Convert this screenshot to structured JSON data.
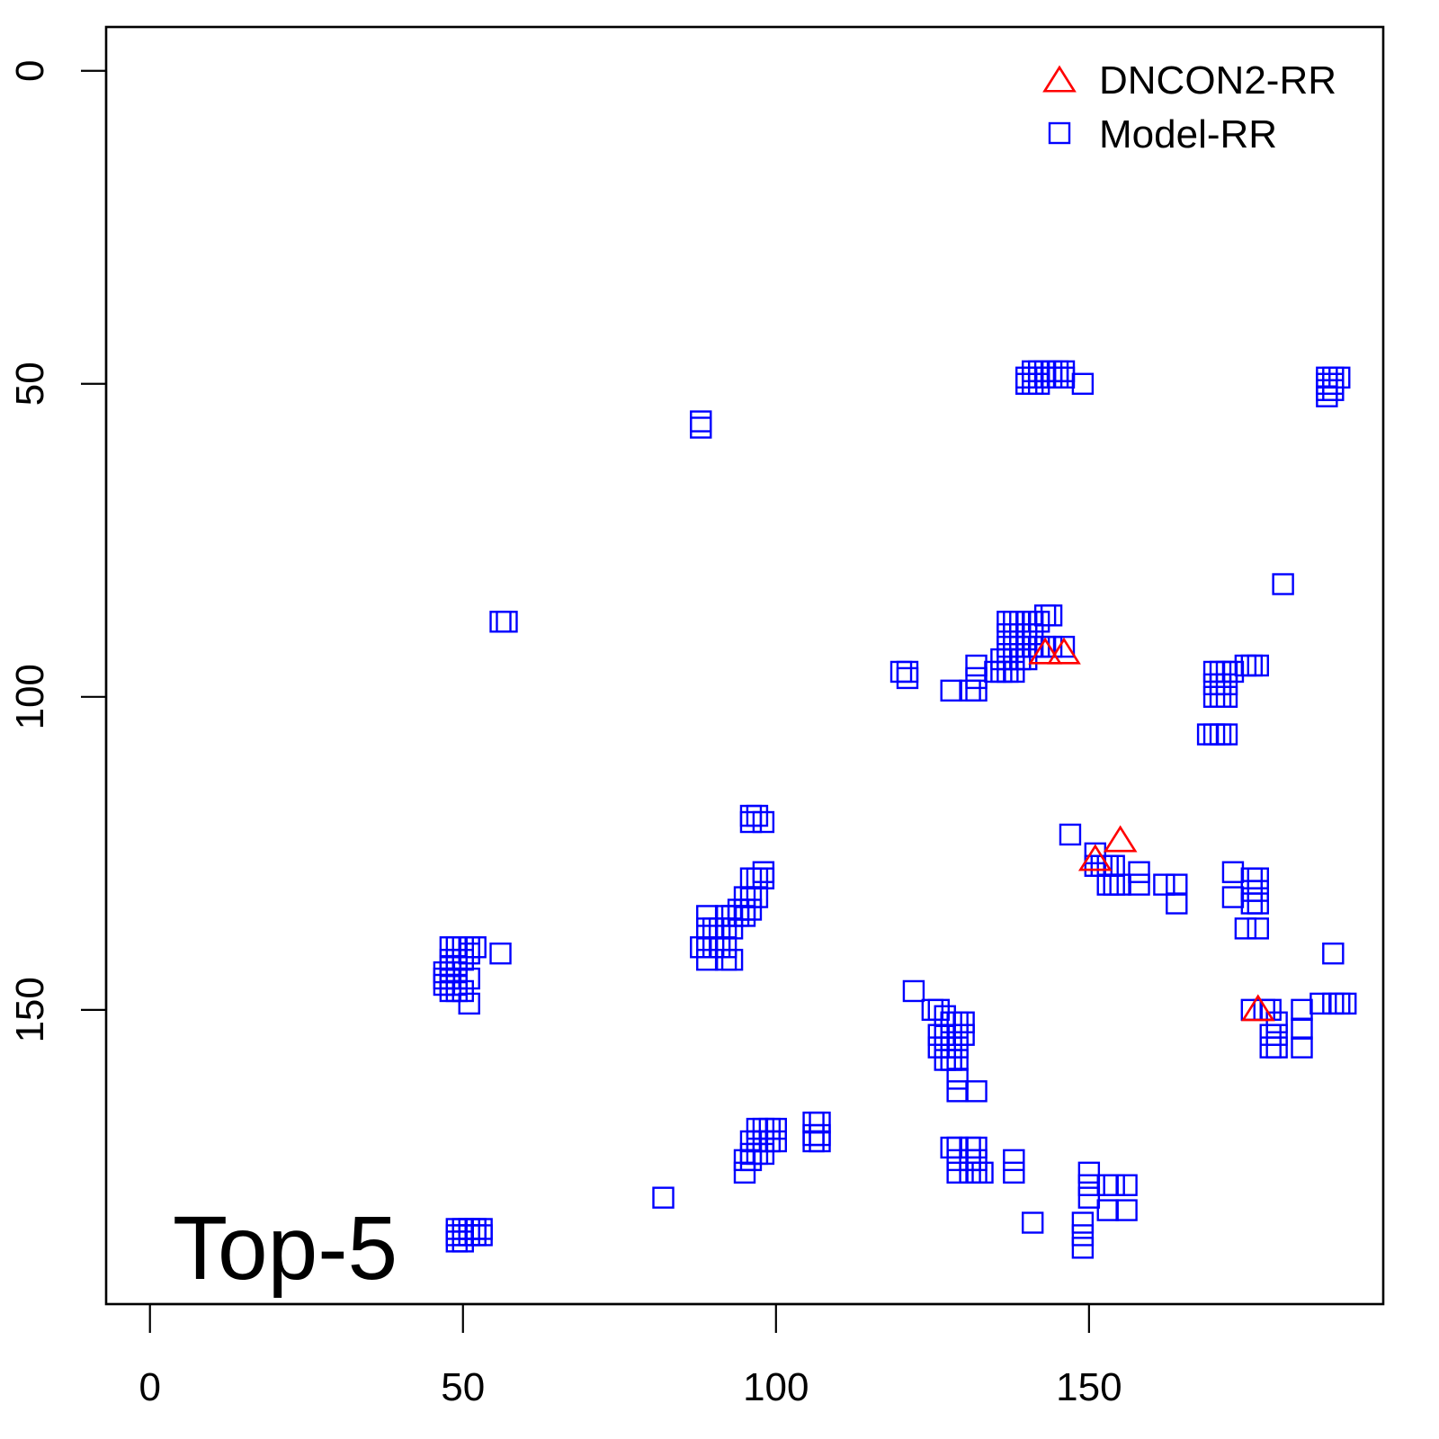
{
  "chart_data": {
    "type": "scatter",
    "title": "",
    "xlabel": "",
    "ylabel": "",
    "xlim": [
      -7,
      197
    ],
    "ylim": [
      -7,
      197
    ],
    "y_reversed": true,
    "grid": false,
    "legend_position": "top-right",
    "x_ticks": [
      0,
      50,
      100,
      150
    ],
    "x_tick_labels": [
      "0",
      "50",
      "100",
      "150"
    ],
    "y_ticks": [
      0,
      50,
      100,
      150
    ],
    "y_tick_labels": [
      "0",
      "50",
      "100",
      "150"
    ],
    "annotation": "Top-5",
    "series": [
      {
        "name": "DNCON2-RR",
        "marker": "triangle",
        "color": "#ff0000",
        "x": [
          143,
          146,
          151,
          155,
          177
        ],
        "y": [
          93,
          93,
          126,
          123,
          150
        ]
      },
      {
        "name": "Model-RR",
        "marker": "square",
        "color": "#0000ff",
        "x": [
          141,
          142,
          143,
          144,
          145,
          146,
          140,
          141,
          142,
          143,
          144,
          145,
          146,
          149,
          140,
          141,
          142,
          188,
          189,
          190,
          188,
          189,
          188,
          189,
          188,
          88,
          88,
          56,
          57,
          181,
          137,
          138,
          139,
          140,
          141,
          142,
          143,
          144,
          137,
          138,
          139,
          140,
          141,
          137,
          138,
          139,
          140,
          141,
          142,
          143,
          144,
          146,
          136,
          137,
          138,
          139,
          140,
          135,
          136,
          137,
          138,
          132,
          132,
          131,
          132,
          128,
          120,
          121,
          121,
          170,
          171,
          172,
          173,
          170,
          171,
          172,
          170,
          171,
          172,
          175,
          176,
          177,
          169,
          170,
          171,
          172,
          96,
          97,
          96,
          98,
          98,
          96,
          97,
          98,
          95,
          96,
          97,
          94,
          95,
          96,
          89,
          92,
          93,
          94,
          95,
          89,
          90,
          91,
          92,
          93,
          88,
          89,
          90,
          91,
          92,
          89,
          92,
          93,
          147,
          151,
          151,
          152,
          153,
          154,
          153,
          154,
          155,
          158,
          158,
          162,
          164,
          164,
          173,
          173,
          176,
          177,
          176,
          177,
          176,
          177,
          175,
          177,
          48,
          49,
          50,
          51,
          48,
          49,
          50,
          48,
          49,
          47,
          48,
          49,
          47,
          48,
          49,
          47,
          48,
          49,
          48,
          49,
          50,
          51,
          51,
          51,
          52,
          56,
          189,
          122,
          125,
          126,
          127,
          128,
          129,
          130,
          126,
          127,
          128,
          129,
          130,
          126,
          127,
          128,
          129,
          127,
          128,
          129,
          129,
          129,
          132,
          176,
          178,
          179,
          180,
          179,
          180,
          179,
          180,
          184,
          184,
          184,
          187,
          189,
          190,
          191,
          97,
          98,
          99,
          100,
          96,
          97,
          98,
          99,
          100,
          96,
          97,
          98,
          95,
          96,
          95,
          106,
          107,
          106,
          107,
          106,
          107,
          128,
          129,
          131,
          132,
          129,
          131,
          132,
          129,
          131,
          132,
          133,
          138,
          138,
          82,
          150,
          150,
          150,
          153,
          154,
          156,
          153,
          156,
          149,
          149,
          149,
          141,
          49,
          50,
          51,
          52,
          53,
          49,
          50,
          51,
          52,
          53,
          49,
          50
        ],
        "y": [
          48,
          48,
          48,
          48,
          48,
          48,
          49,
          49,
          49,
          49,
          49,
          49,
          49,
          50,
          50,
          50,
          50,
          49,
          49,
          49,
          50,
          50,
          51,
          51,
          52,
          56,
          57,
          88,
          88,
          82,
          88,
          88,
          88,
          88,
          88,
          88,
          87,
          87,
          90,
          90,
          90,
          90,
          90,
          92,
          92,
          92,
          92,
          92,
          92,
          92,
          92,
          92,
          94,
          94,
          94,
          94,
          94,
          96,
          96,
          96,
          96,
          95,
          97,
          99,
          99,
          99,
          96,
          96,
          97,
          96,
          96,
          96,
          96,
          98,
          98,
          98,
          100,
          100,
          100,
          95,
          95,
          95,
          106,
          106,
          106,
          106,
          119,
          119,
          120,
          120,
          128,
          129,
          129,
          129,
          132,
          132,
          132,
          134,
          134,
          134,
          135,
          135,
          135,
          135,
          135,
          137,
          137,
          137,
          137,
          137,
          140,
          140,
          140,
          140,
          140,
          142,
          142,
          142,
          122,
          125,
          127,
          127,
          127,
          127,
          130,
          130,
          130,
          128,
          130,
          130,
          130,
          133,
          128,
          132,
          129,
          129,
          131,
          131,
          133,
          133,
          137,
          137,
          140,
          140,
          140,
          140,
          142,
          142,
          142,
          143,
          143,
          144,
          144,
          144,
          145,
          145,
          145,
          146,
          146,
          146,
          147,
          147,
          147,
          141,
          145,
          149,
          140,
          141,
          141,
          147,
          150,
          150,
          151,
          152,
          152,
          152,
          154,
          154,
          154,
          154,
          154,
          156,
          156,
          156,
          156,
          158,
          158,
          158,
          161,
          163,
          163,
          150,
          150,
          150,
          152,
          154,
          154,
          156,
          156,
          153,
          156,
          150,
          149,
          149,
          149,
          149,
          169,
          169,
          169,
          169,
          171,
          171,
          171,
          171,
          171,
          173,
          173,
          173,
          174,
          174,
          176,
          168,
          168,
          170,
          170,
          171,
          171,
          172,
          172,
          172,
          172,
          174,
          174,
          174,
          176,
          176,
          176,
          176,
          174,
          176,
          180,
          176,
          178,
          180,
          178,
          178,
          178,
          182,
          182,
          184,
          186,
          188,
          184,
          185,
          185,
          185,
          185,
          185,
          186,
          186,
          186,
          186,
          186,
          187,
          187
        ]
      }
    ]
  },
  "legend": {
    "items": [
      {
        "label": "DNCON2-RR",
        "marker": "triangle",
        "color": "#ff0000"
      },
      {
        "label": "Model-RR",
        "marker": "square",
        "color": "#0000ff"
      }
    ]
  }
}
